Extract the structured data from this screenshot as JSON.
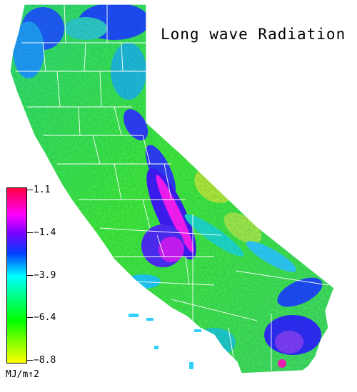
{
  "title": "Long wave Radiation",
  "legend": {
    "unit": "MJ/m↑2",
    "ticks": [
      "1.1",
      "−1.4",
      "−3.9",
      "−6.4",
      "−8.8"
    ],
    "stops": [
      {
        "value": 1.1,
        "color": "#ff0040"
      },
      {
        "value": -0.4,
        "color": "#ff00ff"
      },
      {
        "value": -1.4,
        "color": "#8000ff"
      },
      {
        "value": -2.6,
        "color": "#0040ff"
      },
      {
        "value": -3.9,
        "color": "#00ffff"
      },
      {
        "value": -5.1,
        "color": "#00ff80"
      },
      {
        "value": -6.4,
        "color": "#00ff00"
      },
      {
        "value": -8.8,
        "color": "#ffff00"
      }
    ]
  }
}
